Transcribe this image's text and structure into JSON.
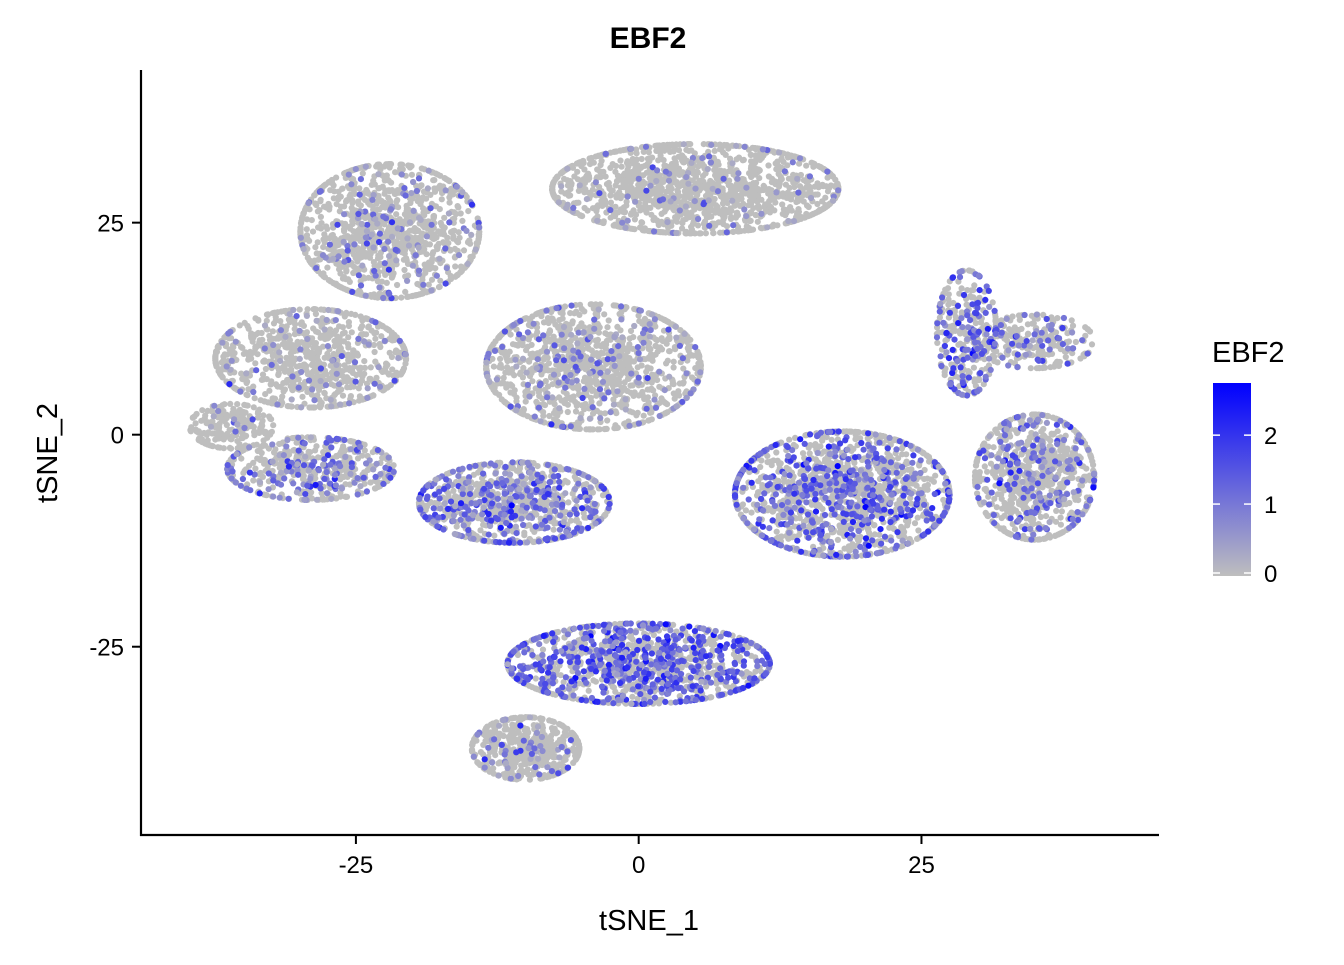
{
  "chart_data": {
    "type": "scatter",
    "title": "EBF2",
    "xlabel": "tSNE_1",
    "ylabel": "tSNE_2",
    "xlim": [
      -44,
      46
    ],
    "ylim": [
      -47.2,
      43
    ],
    "x_ticks": [
      -25,
      0,
      25
    ],
    "y_ticks": [
      -25,
      0,
      25
    ],
    "grid": false,
    "legend": {
      "title": "EBF2",
      "placement": "right",
      "range": [
        0,
        2.8
      ],
      "ticks": [
        0,
        1,
        2
      ],
      "low_color": "#bebebe",
      "high_color": "#0000ff"
    },
    "clusters": [
      {
        "center": [
          -22,
          24
        ],
        "spread": [
          7.5,
          7.5
        ],
        "n": 1100,
        "expr_rate": 0.12,
        "expr_mean": 0.8
      },
      {
        "center": [
          -29,
          9
        ],
        "spread": [
          8,
          5.5
        ],
        "n": 800,
        "expr_rate": 0.1,
        "expr_mean": 0.7
      },
      {
        "center": [
          -36,
          1
        ],
        "spread": [
          3.5,
          2.5
        ],
        "n": 200,
        "expr_rate": 0.08,
        "expr_mean": 0.6
      },
      {
        "center": [
          -29,
          -4
        ],
        "spread": [
          7,
          3.5
        ],
        "n": 500,
        "expr_rate": 0.3,
        "expr_mean": 1.0
      },
      {
        "center": [
          -11,
          -8
        ],
        "spread": [
          8,
          4.5
        ],
        "n": 900,
        "expr_rate": 0.38,
        "expr_mean": 1.1
      },
      {
        "center": [
          -4,
          8
        ],
        "spread": [
          9,
          7
        ],
        "n": 1200,
        "expr_rate": 0.14,
        "expr_mean": 0.8
      },
      {
        "center": [
          5,
          29
        ],
        "spread": [
          12,
          5
        ],
        "n": 1400,
        "expr_rate": 0.07,
        "expr_mean": 0.7
      },
      {
        "center": [
          18,
          -7
        ],
        "spread": [
          9,
          7
        ],
        "n": 1500,
        "expr_rate": 0.3,
        "expr_mean": 1.3
      },
      {
        "center": [
          35,
          -5
        ],
        "spread": [
          5,
          7
        ],
        "n": 800,
        "expr_rate": 0.22,
        "expr_mean": 1.1
      },
      {
        "center": [
          29,
          12
        ],
        "spread": [
          2.5,
          7
        ],
        "n": 300,
        "expr_rate": 0.35,
        "expr_mean": 1.3
      },
      {
        "center": [
          35,
          11
        ],
        "spread": [
          5,
          3
        ],
        "n": 250,
        "expr_rate": 0.2,
        "expr_mean": 1.1
      },
      {
        "center": [
          0,
          -27
        ],
        "spread": [
          11,
          4.5
        ],
        "n": 1200,
        "expr_rate": 0.45,
        "expr_mean": 1.4
      },
      {
        "center": [
          -10,
          -37
        ],
        "spread": [
          4.5,
          3.5
        ],
        "n": 500,
        "expr_rate": 0.1,
        "expr_mean": 0.8
      }
    ]
  }
}
